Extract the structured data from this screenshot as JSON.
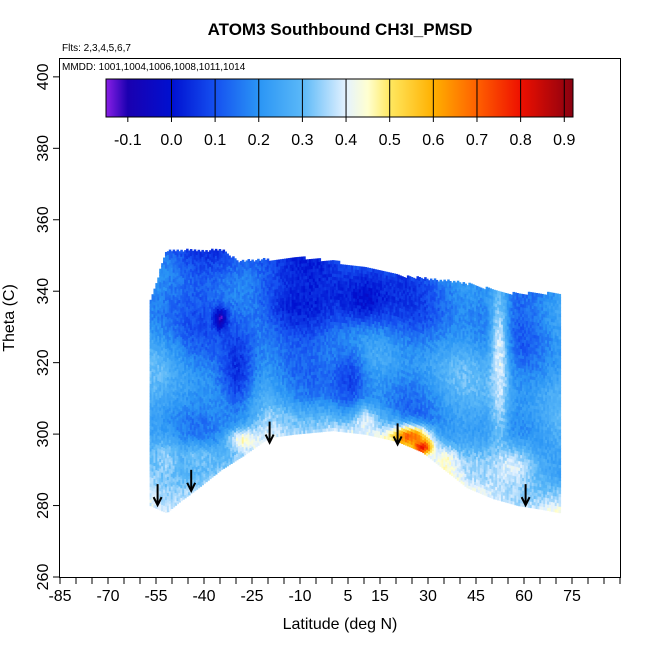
{
  "chart_data": {
    "type": "heatmap",
    "title": "ATOM3 Southbound CH3I_PMSD",
    "flights_note": "Flts: 2,3,4,5,6,7",
    "dates_note": "MMDD: 1001,1004,1006,1008,1011,1014",
    "xlabel": "Latitude (deg N)",
    "ylabel": "Theta (C)",
    "xlim": [
      -85,
      90
    ],
    "ylim": [
      260,
      405
    ],
    "x_ticks": [
      -85,
      -70,
      -55,
      -40,
      -25,
      -10,
      5,
      15,
      30,
      45,
      60,
      75
    ],
    "x_minor_ticks": [
      -85,
      -80,
      -75,
      -70,
      -65,
      -60,
      -55,
      -50,
      -45,
      -40,
      -35,
      -30,
      -25,
      -20,
      -15,
      -10,
      -5,
      0,
      5,
      10,
      15,
      20,
      25,
      30,
      35,
      40,
      45,
      50,
      55,
      60,
      65,
      70,
      75,
      80,
      85,
      90
    ],
    "y_ticks": [
      260,
      280,
      300,
      320,
      340,
      360,
      380,
      400
    ],
    "colorbar": {
      "min": -0.15,
      "max": 0.92,
      "ticks": [
        -0.1,
        0.0,
        0.1,
        0.2,
        0.3,
        0.4,
        0.5,
        0.6,
        0.7,
        0.8,
        0.9
      ],
      "tick_labels": [
        "-0.1",
        "0.0",
        "0.1",
        "0.2",
        "0.3",
        "0.4",
        "0.5",
        "0.6",
        "0.7",
        "0.8",
        "0.9"
      ],
      "boundaries": [
        -0.15,
        0.0,
        0.1,
        0.2,
        0.3,
        0.4,
        0.5,
        0.6,
        0.7,
        0.8,
        0.9,
        0.92
      ],
      "stops": [
        {
          "v": -0.15,
          "c": "#8a1fe6"
        },
        {
          "v": -0.1,
          "c": "#1a00b0"
        },
        {
          "v": 0.0,
          "c": "#0010d0"
        },
        {
          "v": 0.1,
          "c": "#1550f0"
        },
        {
          "v": 0.2,
          "c": "#2a95f5"
        },
        {
          "v": 0.3,
          "c": "#5ab8f8"
        },
        {
          "v": 0.4,
          "c": "#e4f2ff"
        },
        {
          "v": 0.45,
          "c": "#ffffd0"
        },
        {
          "v": 0.5,
          "c": "#ffe860"
        },
        {
          "v": 0.6,
          "c": "#ffb000"
        },
        {
          "v": 0.7,
          "c": "#ff6000"
        },
        {
          "v": 0.8,
          "c": "#ee1000"
        },
        {
          "v": 0.92,
          "c": "#8a0010"
        }
      ]
    },
    "domain": {
      "lat_min": -57,
      "lat_max": 71,
      "top_theta": [
        [
          -57,
          337
        ],
        [
          -52,
          351
        ],
        [
          -34,
          351
        ],
        [
          -30,
          348
        ],
        [
          -10,
          349
        ],
        [
          0,
          348
        ],
        [
          10,
          346
        ],
        [
          20,
          344
        ],
        [
          30,
          343
        ],
        [
          40,
          342
        ],
        [
          50,
          340
        ],
        [
          56,
          339
        ],
        [
          63,
          339
        ],
        [
          71,
          339
        ]
      ],
      "bottom_theta": [
        [
          -57,
          280
        ],
        [
          -52,
          278
        ],
        [
          -48,
          281
        ],
        [
          -42,
          285
        ],
        [
          -35,
          290
        ],
        [
          -28,
          294
        ],
        [
          -20,
          299
        ],
        [
          -12,
          300
        ],
        [
          0,
          301
        ],
        [
          10,
          300
        ],
        [
          20,
          298
        ],
        [
          28,
          295
        ],
        [
          35,
          290
        ],
        [
          42,
          285
        ],
        [
          50,
          282
        ],
        [
          58,
          280
        ],
        [
          65,
          279
        ],
        [
          71,
          278
        ]
      ]
    },
    "field_anomalies": [
      {
        "lat": -35,
        "theta": 332,
        "lat_w": 2,
        "theta_w": 3,
        "value": -0.15
      },
      {
        "lat": -30,
        "theta": 318,
        "lat_w": 6,
        "theta_w": 14,
        "value": 0.05
      },
      {
        "lat": -10,
        "theta": 336,
        "lat_w": 14,
        "theta_w": 10,
        "value": 0.02
      },
      {
        "lat": 10,
        "theta": 338,
        "lat_w": 10,
        "theta_w": 8,
        "value": 0.0
      },
      {
        "lat": 5,
        "theta": 315,
        "lat_w": 6,
        "theta_w": 10,
        "value": 0.08
      },
      {
        "lat": -52,
        "theta": 292,
        "lat_w": 4,
        "theta_w": 6,
        "value": 0.35
      },
      {
        "lat": -42,
        "theta": 293,
        "lat_w": 8,
        "theta_w": 5,
        "value": 0.32
      },
      {
        "lat": -28,
        "theta": 298,
        "lat_w": 5,
        "theta_w": 3,
        "value": 0.45
      },
      {
        "lat": 10,
        "theta": 303,
        "lat_w": 3,
        "theta_w": 4,
        "value": 0.4
      },
      {
        "lat": 24,
        "theta": 299,
        "lat_w": 6,
        "theta_w": 3,
        "value": 0.7
      },
      {
        "lat": 28,
        "theta": 296,
        "lat_w": 3,
        "theta_w": 2,
        "value": 0.82
      },
      {
        "lat": 35,
        "theta": 292,
        "lat_w": 4,
        "theta_w": 4,
        "value": 0.45
      },
      {
        "lat": 52,
        "theta": 320,
        "lat_w": 3,
        "theta_w": 25,
        "value": 0.4
      },
      {
        "lat": 56,
        "theta": 290,
        "lat_w": 10,
        "theta_w": 8,
        "value": 0.4
      },
      {
        "lat": 45,
        "theta": 290,
        "lat_w": 5,
        "theta_w": 5,
        "value": 0.35
      }
    ],
    "arrows": [
      {
        "lat": -54.5,
        "theta": 286
      },
      {
        "lat": -44,
        "theta": 290
      },
      {
        "lat": -19.5,
        "theta": 303.5
      },
      {
        "lat": 20.5,
        "theta": 303
      },
      {
        "lat": 60.5,
        "theta": 286
      }
    ]
  }
}
